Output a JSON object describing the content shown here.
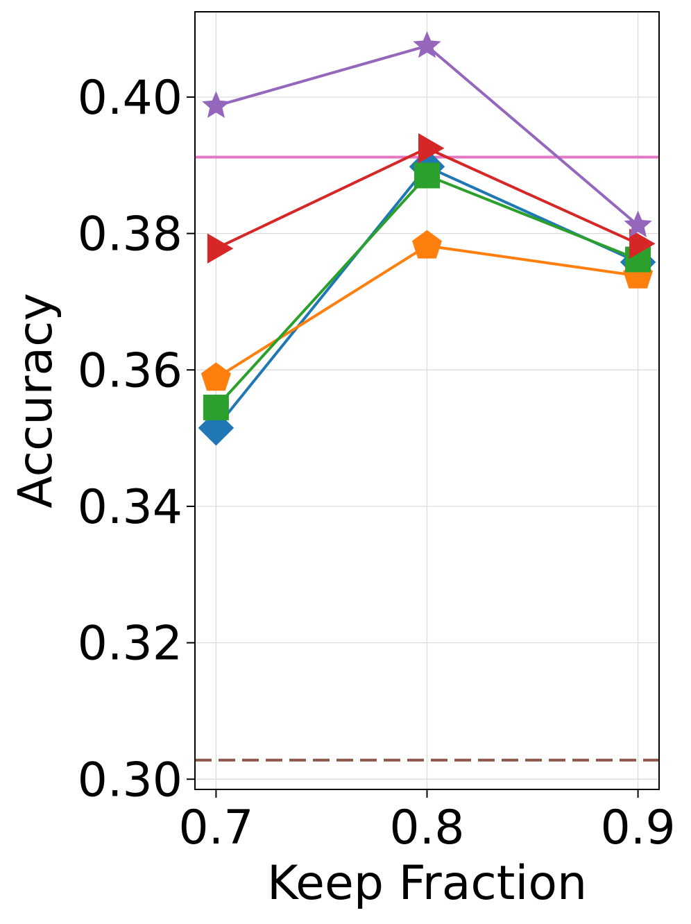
{
  "chart_data": {
    "type": "line",
    "title": "",
    "xlabel": "Keep Fraction",
    "ylabel": "Accuracy",
    "x": [
      0.7,
      0.8,
      0.9
    ],
    "x_ticks": [
      "0.7",
      "0.8",
      "0.9"
    ],
    "y_ticks": [
      "0.30",
      "0.32",
      "0.34",
      "0.36",
      "0.38",
      "0.40"
    ],
    "xlim": [
      0.69,
      0.91
    ],
    "ylim": [
      0.2985,
      0.4125
    ],
    "grid": true,
    "legend": "none",
    "series": [
      {
        "color": "#1f77b4",
        "marker": "diamond",
        "values": [
          0.3515,
          0.3898,
          0.3758
        ]
      },
      {
        "color": "#ff7f0e",
        "marker": "pentagon",
        "values": [
          0.3588,
          0.3782,
          0.3738
        ]
      },
      {
        "color": "#2ca02c",
        "marker": "square",
        "values": [
          0.3545,
          0.3885,
          0.3762
        ]
      },
      {
        "color": "#d62728",
        "marker": "triangle-right",
        "values": [
          0.3778,
          0.3925,
          0.3785
        ]
      },
      {
        "color": "#9467bd",
        "marker": "star",
        "values": [
          0.3987,
          0.4075,
          0.3812
        ]
      }
    ],
    "reference_lines": [
      {
        "color": "#e377c2",
        "style": "solid",
        "value": 0.3912
      },
      {
        "color": "#8c564b",
        "style": "dashed",
        "value": 0.3028
      }
    ]
  }
}
